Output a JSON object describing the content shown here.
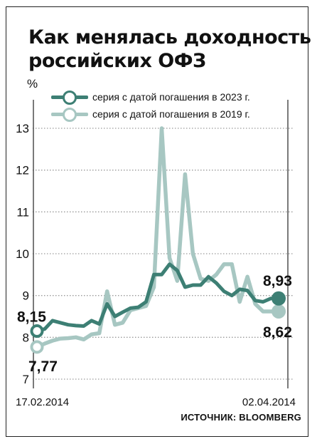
{
  "title_line1": "Как менялась доходность",
  "title_line2": "российских ОФЗ",
  "unit": "%",
  "source": "ИСТОЧНИК: BLOOMBERG",
  "colors": {
    "series_2023": "#3d7f74",
    "series_2019": "#a7c7c2",
    "grid": "#9a9a9a"
  },
  "chart_data": {
    "type": "line",
    "title": "Как менялась доходность российских ОФЗ",
    "ylabel": "%",
    "ylim": [
      7,
      13.5
    ],
    "yticks": [
      "7",
      "8",
      "9",
      "10",
      "11",
      "12",
      "13"
    ],
    "x_start_label": "17.02.2014",
    "x_end_label": "02.04.2014",
    "x": [
      0,
      1,
      2,
      3,
      4,
      5,
      6,
      7,
      8,
      9,
      10,
      11,
      12,
      13,
      14,
      15,
      16,
      17,
      18,
      19,
      20,
      21,
      22,
      23,
      24,
      25,
      26,
      27,
      28,
      29,
      30,
      31
    ],
    "series": [
      {
        "name": "серия с датой погашения в 2023 г.",
        "values": [
          8.15,
          8.2,
          8.4,
          8.35,
          8.3,
          8.28,
          8.27,
          8.4,
          8.32,
          8.8,
          8.5,
          8.6,
          8.7,
          8.72,
          8.85,
          9.5,
          9.5,
          9.75,
          9.6,
          9.2,
          9.25,
          9.25,
          9.45,
          9.3,
          9.1,
          9.0,
          9.15,
          9.12,
          8.88,
          8.85,
          8.93,
          8.93
        ],
        "start_label": "8,15",
        "end_label": "8,93"
      },
      {
        "name": "серия с датой погашения в 2019 г.",
        "values": [
          7.77,
          7.85,
          7.92,
          7.97,
          7.98,
          8.0,
          7.95,
          8.07,
          8.1,
          9.1,
          8.3,
          8.35,
          8.65,
          8.7,
          8.75,
          9.2,
          13.0,
          9.9,
          9.35,
          11.9,
          10.0,
          9.4,
          9.35,
          9.5,
          9.75,
          9.75,
          8.85,
          9.45,
          8.8,
          8.62,
          8.62,
          8.62
        ],
        "start_label": "7,77",
        "end_label": "8,62"
      }
    ],
    "grid": true,
    "legend_position": "top-left"
  }
}
